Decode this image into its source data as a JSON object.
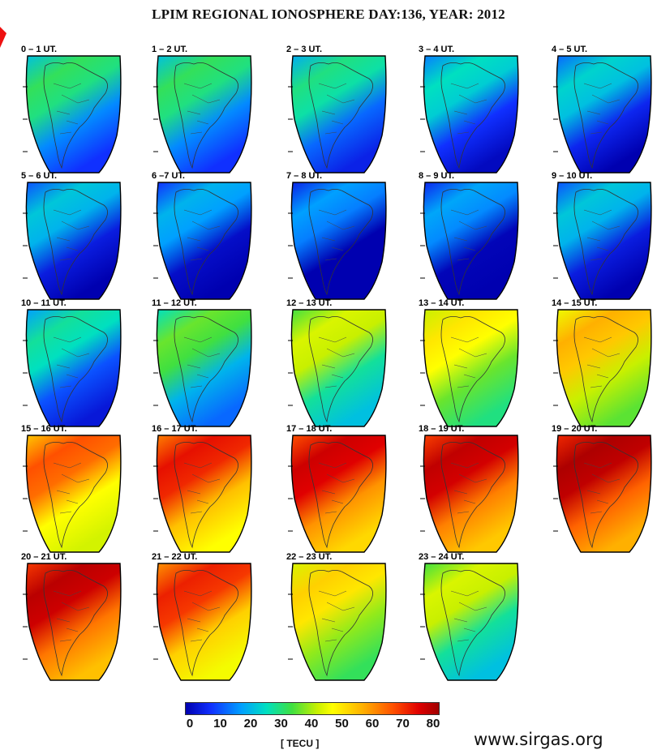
{
  "title": "LPIM REGIONAL IONOSPHERE DAY:136, YEAR: 2012",
  "panels": [
    {
      "label": "0 – 1 UT.",
      "level": 0.3
    },
    {
      "label": "1 – 2 UT.",
      "level": 0.3
    },
    {
      "label": "2 – 3 UT.",
      "level": 0.27
    },
    {
      "label": "3 – 4 UT.",
      "level": 0.22
    },
    {
      "label": "4 – 5 UT.",
      "level": 0.2
    },
    {
      "label": "5 – 6 UT.",
      "level": 0.18
    },
    {
      "label": "6 –7 UT.",
      "level": 0.15
    },
    {
      "label": "7 – 8 UT.",
      "level": 0.12
    },
    {
      "label": "8 – 9 UT.",
      "level": 0.13
    },
    {
      "label": "9 – 10 UT.",
      "level": 0.18
    },
    {
      "label": "10 – 11 UT.",
      "level": 0.25
    },
    {
      "label": "11 – 12 UT.",
      "level": 0.35
    },
    {
      "label": "12 – 13 UT.",
      "level": 0.45
    },
    {
      "label": "13 – 14 UT.",
      "level": 0.55
    },
    {
      "label": "14 – 15 UT.",
      "level": 0.62
    },
    {
      "label": "15 – 16 UT.",
      "level": 0.72
    },
    {
      "label": "16 – 17 UT.",
      "level": 0.8
    },
    {
      "label": "17 – 18 UT.",
      "level": 0.85
    },
    {
      "label": "18 – 19 UT.",
      "level": 0.87
    },
    {
      "label": "19 – 20 UT.",
      "level": 0.9
    },
    {
      "label": "20 – 21 UT.",
      "level": 0.88
    },
    {
      "label": "21 – 22 UT.",
      "level": 0.78
    },
    {
      "label": "22 – 23 UT.",
      "level": 0.58
    },
    {
      "label": "23 – 24 UT.",
      "level": 0.45
    }
  ],
  "colorbar": {
    "ticks": [
      "0",
      "10",
      "20",
      "30",
      "40",
      "50",
      "60",
      "70",
      "80"
    ],
    "unit": "[ TECU ]",
    "min": 0,
    "max": 80,
    "colors": [
      "#0000b0",
      "#1030ff",
      "#00a0ff",
      "#00e0c0",
      "#40e040",
      "#c8f000",
      "#ffff00",
      "#ffb000",
      "#ff5000",
      "#e00000",
      "#a00000"
    ]
  },
  "source": "www.sirgas.org"
}
